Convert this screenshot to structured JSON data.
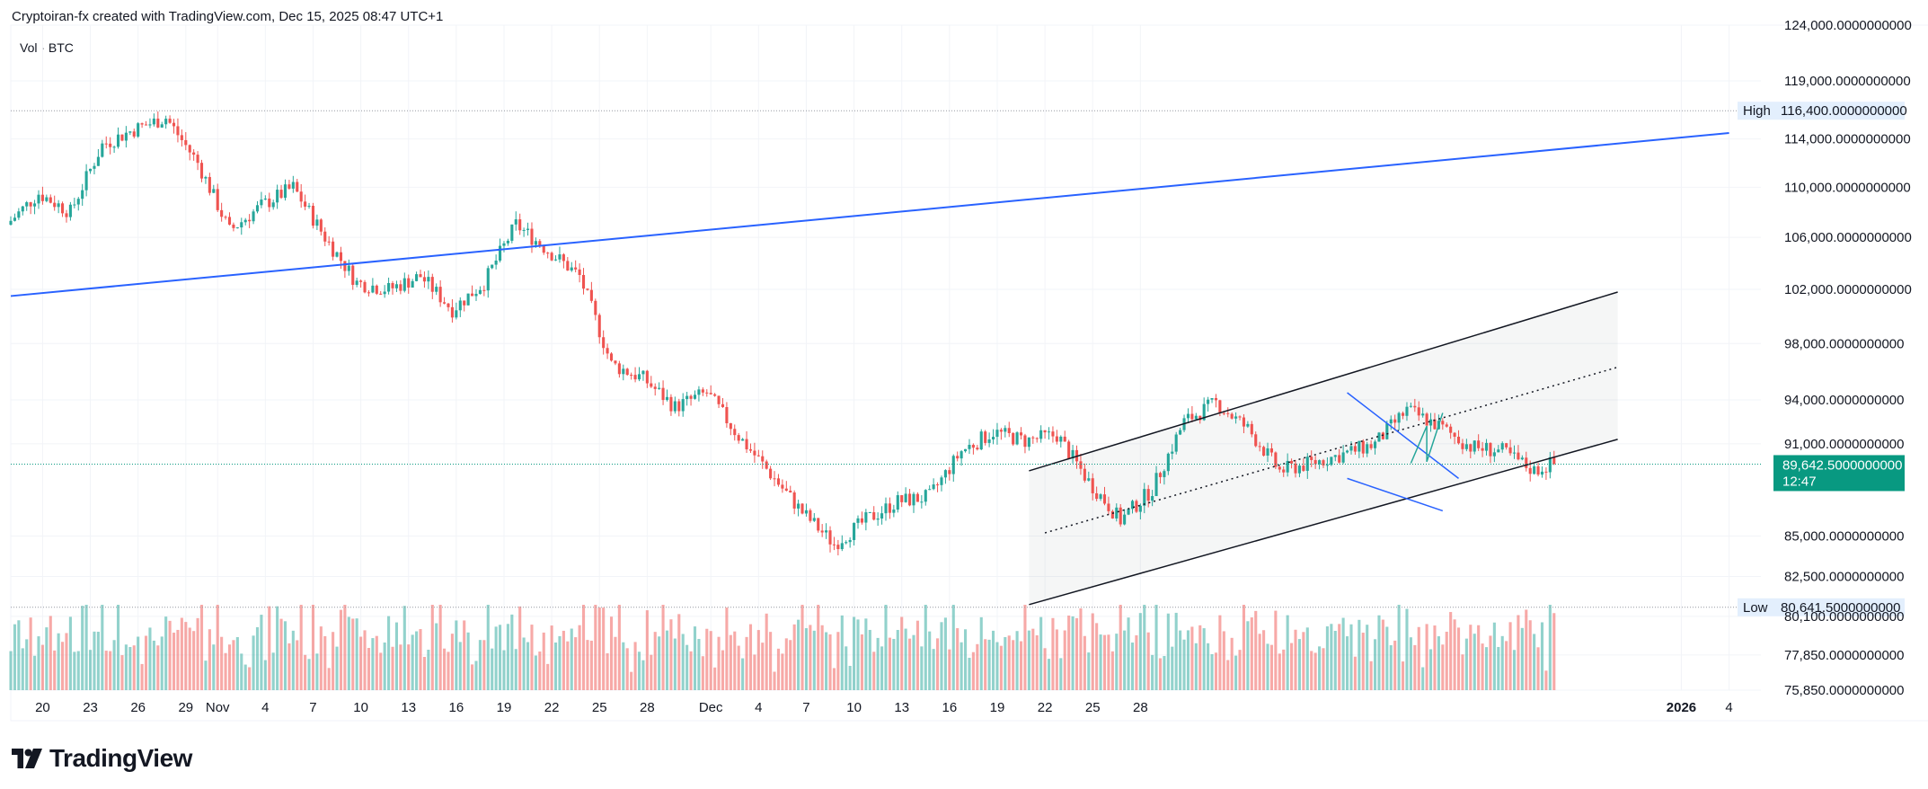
{
  "header": {
    "attribution": "Cryptoiran-fx created with TradingView.com, Dec 15, 2025 08:47 UTC+1"
  },
  "legend": {
    "label": "Vol · BTC"
  },
  "brand": {
    "name": "TradingView"
  },
  "colors": {
    "up": "#26a69a",
    "down": "#ef5350",
    "accent": "#2962ff",
    "price_tag": "#089981"
  },
  "chart_data": {
    "type": "candlestick",
    "x": {
      "start_date": "2025-09-18",
      "end_date": "2026-01-06",
      "tick_labels": [
        {
          "date": "2025-09-20",
          "label": "20"
        },
        {
          "date": "2025-09-23",
          "label": "23"
        },
        {
          "date": "2025-09-26",
          "label": "26"
        },
        {
          "date": "2025-09-29",
          "label": "29"
        },
        {
          "date": "2025-10-01",
          "label": "Nov"
        },
        {
          "date": "2025-10-04",
          "label": "4"
        },
        {
          "date": "2025-10-07",
          "label": "7"
        },
        {
          "date": "2025-10-10",
          "label": "10"
        },
        {
          "date": "2025-10-13",
          "label": "13"
        },
        {
          "date": "2025-10-16",
          "label": "16"
        },
        {
          "date": "2025-10-19",
          "label": "19"
        },
        {
          "date": "2025-10-22",
          "label": "22"
        },
        {
          "date": "2025-10-25",
          "label": "25"
        },
        {
          "date": "2025-10-28",
          "label": "28"
        },
        {
          "date": "2025-11-01",
          "label": "Dec"
        },
        {
          "date": "2025-11-04",
          "label": "4"
        },
        {
          "date": "2025-11-07",
          "label": "7"
        },
        {
          "date": "2025-11-10",
          "label": "10"
        },
        {
          "date": "2025-11-13",
          "label": "13"
        },
        {
          "date": "2025-11-16",
          "label": "16"
        },
        {
          "date": "2025-11-19",
          "label": "19"
        },
        {
          "date": "2025-11-22",
          "label": "22"
        },
        {
          "date": "2025-11-25",
          "label": "25"
        },
        {
          "date": "2025-11-28",
          "label": "28"
        },
        {
          "date": "2026-01-01",
          "label": "2026"
        },
        {
          "date": "2026-01-04",
          "label": "4"
        }
      ]
    },
    "y": {
      "scale": "log",
      "range": [
        75850,
        124000
      ],
      "tick_labels": [
        {
          "value": 124000,
          "label": "124,000.0000000000"
        },
        {
          "value": 119000,
          "label": "119,000.0000000000"
        },
        {
          "value": 114000,
          "label": "114,000.0000000000"
        },
        {
          "value": 110000,
          "label": "110,000.0000000000"
        },
        {
          "value": 106000,
          "label": "106,000.0000000000"
        },
        {
          "value": 102000,
          "label": "102,000.0000000000"
        },
        {
          "value": 98000,
          "label": "98,000.0000000000"
        },
        {
          "value": 94000,
          "label": "94,000.0000000000"
        },
        {
          "value": 91000,
          "label": "91,000.0000000000"
        },
        {
          "value": 85000,
          "label": "85,000.0000000000"
        },
        {
          "value": 82500,
          "label": "82,500.0000000000"
        },
        {
          "value": 80100,
          "label": "80,100.0000000000"
        },
        {
          "value": 77850,
          "label": "77,850.0000000000"
        },
        {
          "value": 75850,
          "label": "75,850.0000000000"
        }
      ]
    },
    "price_levels": [
      {
        "name": "High",
        "value": 116400,
        "label": "116,400.0000000000"
      },
      {
        "name": "Low",
        "value": 80641.5,
        "label": "80,641.5000000000"
      }
    ],
    "last_price": {
      "value": 89642.5,
      "label": "89,642.5000000000",
      "countdown": "12:47"
    },
    "daily_path": [
      {
        "date": "2025-09-18",
        "close": 107000
      },
      {
        "date": "2025-09-20",
        "close": 109500
      },
      {
        "date": "2025-09-22",
        "close": 108000
      },
      {
        "date": "2025-09-24",
        "close": 113500
      },
      {
        "date": "2025-09-26",
        "close": 114800
      },
      {
        "date": "2025-09-28",
        "close": 115800
      },
      {
        "date": "2025-09-30",
        "close": 112000
      },
      {
        "date": "2025-10-02",
        "close": 106500
      },
      {
        "date": "2025-10-04",
        "close": 108500
      },
      {
        "date": "2025-10-06",
        "close": 110000
      },
      {
        "date": "2025-10-08",
        "close": 106000
      },
      {
        "date": "2025-10-10",
        "close": 102500
      },
      {
        "date": "2025-10-12",
        "close": 102000
      },
      {
        "date": "2025-10-14",
        "close": 103000
      },
      {
        "date": "2025-10-16",
        "close": 100500
      },
      {
        "date": "2025-10-18",
        "close": 102500
      },
      {
        "date": "2025-10-20",
        "close": 107000
      },
      {
        "date": "2025-10-22",
        "close": 105000
      },
      {
        "date": "2025-10-24",
        "close": 103000
      },
      {
        "date": "2025-10-26",
        "close": 96500
      },
      {
        "date": "2025-10-28",
        "close": 95500
      },
      {
        "date": "2025-10-30",
        "close": 93500
      },
      {
        "date": "2025-11-01",
        "close": 94500
      },
      {
        "date": "2025-11-03",
        "close": 91500
      },
      {
        "date": "2025-11-05",
        "close": 89000
      },
      {
        "date": "2025-11-07",
        "close": 86500
      },
      {
        "date": "2025-11-09",
        "close": 84500
      },
      {
        "date": "2025-11-11",
        "close": 86000
      },
      {
        "date": "2025-11-13",
        "close": 87200
      },
      {
        "date": "2025-11-15",
        "close": 87500
      },
      {
        "date": "2025-11-17",
        "close": 90500
      },
      {
        "date": "2025-11-19",
        "close": 91800
      },
      {
        "date": "2025-11-21",
        "close": 91200
      },
      {
        "date": "2025-11-23",
        "close": 91600
      },
      {
        "date": "2025-11-25",
        "close": 88500
      },
      {
        "date": "2025-11-27",
        "close": 86000
      },
      {
        "date": "2025-11-29",
        "close": 88000
      },
      {
        "date": "2025-12-01",
        "close": 92500
      },
      {
        "date": "2025-12-03",
        "close": 93800
      },
      {
        "date": "2025-12-05",
        "close": 92000
      },
      {
        "date": "2025-12-07",
        "close": 89200
      },
      {
        "date": "2025-12-09",
        "close": 89700
      },
      {
        "date": "2025-12-11",
        "close": 90300
      },
      {
        "date": "2025-12-13",
        "close": 91000
      },
      {
        "date": "2025-12-15",
        "close": 93300
      },
      {
        "date": "2025-12-17",
        "close": 92200
      },
      {
        "date": "2025-12-19",
        "close": 90800
      },
      {
        "date": "2025-12-21",
        "close": 90500
      },
      {
        "date": "2025-12-23",
        "close": 89200
      },
      {
        "date": "2025-12-24",
        "close": 89642.5
      }
    ],
    "drawings": [
      {
        "kind": "trendline",
        "color": "#2962ff",
        "from": {
          "date": "2025-09-18",
          "price": 101500
        },
        "to": {
          "date": "2026-01-04",
          "price": 114500
        }
      },
      {
        "kind": "channel-upper",
        "color": "#131722",
        "from": {
          "date": "2025-11-21",
          "price": 89200
        },
        "to": {
          "date": "2025-12-28",
          "price": 101800
        }
      },
      {
        "kind": "channel-mid",
        "color": "#131722",
        "style": "dotted",
        "from": {
          "date": "2025-11-22",
          "price": 85200
        },
        "to": {
          "date": "2025-12-28",
          "price": 96300
        }
      },
      {
        "kind": "channel-lower",
        "color": "#131722",
        "from": {
          "date": "2025-11-21",
          "price": 80800
        },
        "to": {
          "date": "2025-12-28",
          "price": 91300
        }
      },
      {
        "kind": "wedge-upper",
        "color": "#2962ff",
        "from": {
          "date": "2025-12-11",
          "price": 94500
        },
        "to": {
          "date": "2025-12-18",
          "price": 88700
        }
      },
      {
        "kind": "wedge-lower",
        "color": "#2962ff",
        "from": {
          "date": "2025-12-11",
          "price": 88700
        },
        "to": {
          "date": "2025-12-17",
          "price": 86600
        }
      },
      {
        "kind": "projection",
        "color": "#26a69a",
        "points": [
          {
            "date": "2025-12-15",
            "price": 89700
          },
          {
            "date": "2025-12-16",
            "price": 92200
          },
          {
            "date": "2025-12-16",
            "price": 89800
          },
          {
            "date": "2025-12-17",
            "price": 93100
          }
        ]
      }
    ]
  }
}
